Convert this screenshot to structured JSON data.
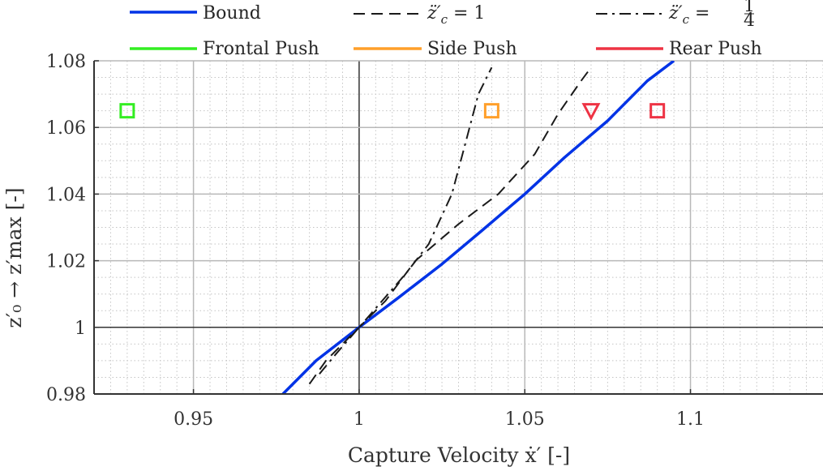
{
  "chart_data": {
    "type": "line",
    "title": "",
    "xlabel": "Capture Velocity ẋ′ [-]",
    "ylabel": "z′₀ → z′max [-]",
    "xlim": [
      0.92,
      1.14
    ],
    "ylim": [
      0.98,
      1.08
    ],
    "grid": true,
    "minor_grid": true,
    "legend_position": "top",
    "x_ticks": [
      0.95,
      1.0,
      1.05,
      1.1
    ],
    "x_tick_labels": [
      "0.95",
      "1",
      "1.05",
      "1.1"
    ],
    "y_ticks": [
      0.98,
      1.0,
      1.02,
      1.04,
      1.06,
      1.08
    ],
    "y_tick_labels": [
      "0.98",
      "1",
      "1.02",
      "1.04",
      "1.06",
      "1.08"
    ],
    "series": [
      {
        "name": "Bound",
        "style": "solid",
        "color": "#0033e6",
        "x": [
          0.977,
          0.987,
          1.0,
          1.012,
          1.025,
          1.037,
          1.05,
          1.062,
          1.075,
          1.087,
          1.095
        ],
        "y": [
          0.98,
          0.99,
          1.0,
          1.009,
          1.019,
          1.029,
          1.04,
          1.051,
          1.062,
          1.074,
          1.08
        ]
      },
      {
        "name": "z̈′c = 1",
        "style": "dashed",
        "color": "#1a1a1a",
        "x": [
          0.985,
          0.99,
          1.0,
          1.008,
          1.017,
          1.03,
          1.042,
          1.053,
          1.06,
          1.067,
          1.07
        ],
        "y": [
          0.983,
          0.99,
          1.0,
          1.008,
          1.02,
          1.031,
          1.04,
          1.052,
          1.064,
          1.074,
          1.078
        ]
      },
      {
        "name": "z̈′c = 1/4",
        "style": "dashdot",
        "color": "#1a1a1a",
        "x": [
          0.988,
          0.993,
          1.0,
          1.007,
          1.014,
          1.021,
          1.028,
          1.032,
          1.036,
          1.04
        ],
        "y": [
          0.986,
          0.992,
          1.0,
          1.008,
          1.016,
          1.025,
          1.04,
          1.055,
          1.07,
          1.078
        ]
      }
    ],
    "markers": [
      {
        "name": "Frontal Push",
        "shape": "square",
        "color": "#33ee22",
        "x": 0.93,
        "y": 1.065
      },
      {
        "name": "Side Push",
        "shape": "square",
        "color": "#ff9f2a",
        "x": 1.04,
        "y": 1.065
      },
      {
        "name": "Rear Push",
        "shape": "triangle-down",
        "color": "#ee3344",
        "x": 1.07,
        "y": 1.065
      },
      {
        "name": "Rear Push",
        "shape": "square",
        "color": "#ee3344",
        "x": 1.09,
        "y": 1.065
      }
    ],
    "legend": [
      {
        "label": "Bound",
        "style": "solid",
        "color": "#0033e6"
      },
      {
        "label_parts": [
          "z̈′",
          "c",
          " = 1"
        ],
        "style": "dashed",
        "color": "#1a1a1a"
      },
      {
        "label_parts": [
          "z̈′",
          "c",
          " = ",
          "1",
          "4"
        ],
        "style": "dashdot",
        "color": "#1a1a1a"
      },
      {
        "label": "Frontal Push",
        "style": "solid",
        "color": "#33ee22"
      },
      {
        "label": "Side Push",
        "style": "solid",
        "color": "#ff9f2a"
      },
      {
        "label": "Rear Push",
        "style": "solid",
        "color": "#ee3344"
      }
    ],
    "colors": {
      "grid_major": "#b8b8b8",
      "grid_minor": "#c4c4c4",
      "zero_line": "#333333",
      "axis": "#333333"
    }
  }
}
